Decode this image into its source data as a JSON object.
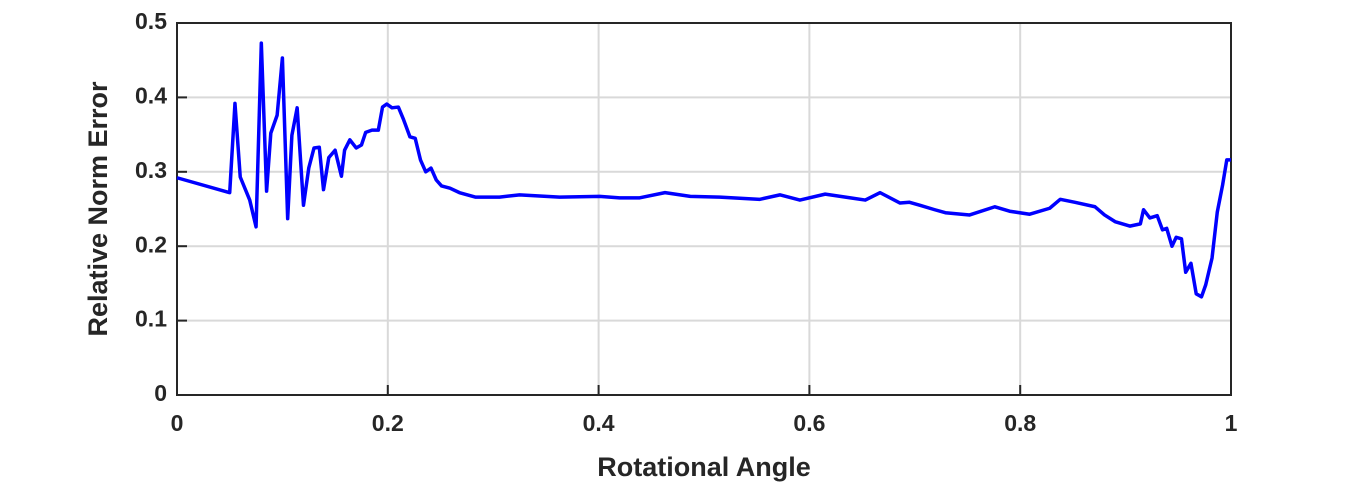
{
  "chart_data": {
    "type": "line",
    "xlabel": "Rotational Angle",
    "ylabel": "Relative Norm Error",
    "color": "#0000ff",
    "x": [
      0,
      0.05,
      0.055,
      0.06,
      0.069,
      0.075,
      0.08,
      0.085,
      0.089,
      0.095,
      0.1,
      0.105,
      0.109,
      0.114,
      0.12,
      0.125,
      0.13,
      0.135,
      0.139,
      0.144,
      0.15,
      0.156,
      0.159,
      0.164,
      0.17,
      0.175,
      0.179,
      0.185,
      0.191,
      0.195,
      0.199,
      0.204,
      0.21,
      0.215,
      0.221,
      0.226,
      0.231,
      0.236,
      0.241,
      0.246,
      0.251,
      0.259,
      0.268,
      0.283,
      0.306,
      0.325,
      0.363,
      0.401,
      0.42,
      0.439,
      0.463,
      0.487,
      0.515,
      0.553,
      0.572,
      0.591,
      0.615,
      0.639,
      0.653,
      0.667,
      0.686,
      0.695,
      0.705,
      0.719,
      0.729,
      0.752,
      0.776,
      0.79,
      0.809,
      0.828,
      0.838,
      0.852,
      0.871,
      0.88,
      0.89,
      0.904,
      0.914,
      0.917,
      0.923,
      0.93,
      0.935,
      0.939,
      0.944,
      0.948,
      0.953,
      0.957,
      0.962,
      0.967,
      0.972,
      0.976,
      0.982,
      0.987,
      0.992,
      0.996,
      1.0
    ],
    "values": [
      0.292,
      0.272,
      0.392,
      0.293,
      0.262,
      0.226,
      0.473,
      0.274,
      0.352,
      0.376,
      0.453,
      0.237,
      0.349,
      0.386,
      0.255,
      0.305,
      0.332,
      0.333,
      0.276,
      0.319,
      0.329,
      0.294,
      0.329,
      0.343,
      0.332,
      0.336,
      0.353,
      0.356,
      0.356,
      0.387,
      0.391,
      0.386,
      0.387,
      0.37,
      0.347,
      0.345,
      0.316,
      0.3,
      0.305,
      0.289,
      0.281,
      0.278,
      0.272,
      0.266,
      0.266,
      0.269,
      0.266,
      0.267,
      0.265,
      0.265,
      0.272,
      0.267,
      0.266,
      0.263,
      0.269,
      0.262,
      0.27,
      0.265,
      0.262,
      0.272,
      0.258,
      0.259,
      0.255,
      0.249,
      0.245,
      0.242,
      0.253,
      0.247,
      0.243,
      0.251,
      0.263,
      0.259,
      0.253,
      0.242,
      0.233,
      0.227,
      0.23,
      0.249,
      0.238,
      0.241,
      0.222,
      0.224,
      0.2,
      0.212,
      0.21,
      0.165,
      0.177,
      0.136,
      0.132,
      0.148,
      0.184,
      0.246,
      0.282,
      0.316,
      0.316
    ],
    "xlim": [
      0,
      1
    ],
    "xticks": [
      0,
      0.2,
      0.4,
      0.6,
      0.8,
      1
    ],
    "ylim": [
      0,
      0.5
    ],
    "yticks": [
      0,
      0.1,
      0.2,
      0.3,
      0.4,
      0.5
    ],
    "grid": true
  }
}
